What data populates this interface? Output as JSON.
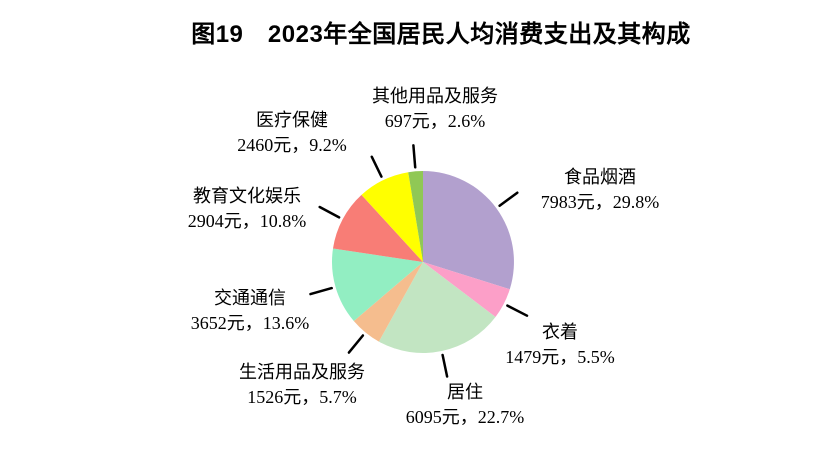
{
  "title": "图19　2023年全国居民人均消费支出及其构成",
  "chart_data": {
    "type": "pie",
    "title": "图19　2023年全国居民人均消费支出及其构成",
    "unit": "元",
    "start_angle": "top, clockwise",
    "legend_position": "none (leader-line labels around pie)",
    "slices": [
      {
        "label": "食品烟酒",
        "value_yuan": 7983,
        "percent": 29.8,
        "display": "7983元，29.8%",
        "color": "#b2a0ce"
      },
      {
        "label": "衣着",
        "value_yuan": 1479,
        "percent": 5.5,
        "display": "1479元，5.5%",
        "color": "#fc9fc8"
      },
      {
        "label": "居住",
        "value_yuan": 6095,
        "percent": 22.7,
        "display": "6095元，22.7%",
        "color": "#c2e5c2"
      },
      {
        "label": "生活用品及服务",
        "value_yuan": 1526,
        "percent": 5.7,
        "display": "1526元，5.7%",
        "color": "#f5bd8e"
      },
      {
        "label": "交通通信",
        "value_yuan": 3652,
        "percent": 13.6,
        "display": "3652元，13.6%",
        "color": "#92eec2"
      },
      {
        "label": "教育文化娱乐",
        "value_yuan": 2904,
        "percent": 10.8,
        "display": "2904元，10.8%",
        "color": "#f87d76"
      },
      {
        "label": "医疗保健",
        "value_yuan": 2460,
        "percent": 9.2,
        "display": "2460元，9.2%",
        "color": "#ffff00"
      },
      {
        "label": "其他用品及服务",
        "value_yuan": 697,
        "percent": 2.6,
        "display": "697元，2.6%",
        "color": "#90c855"
      }
    ],
    "leader_line_color": "#000000",
    "background_color": "#ffffff"
  }
}
